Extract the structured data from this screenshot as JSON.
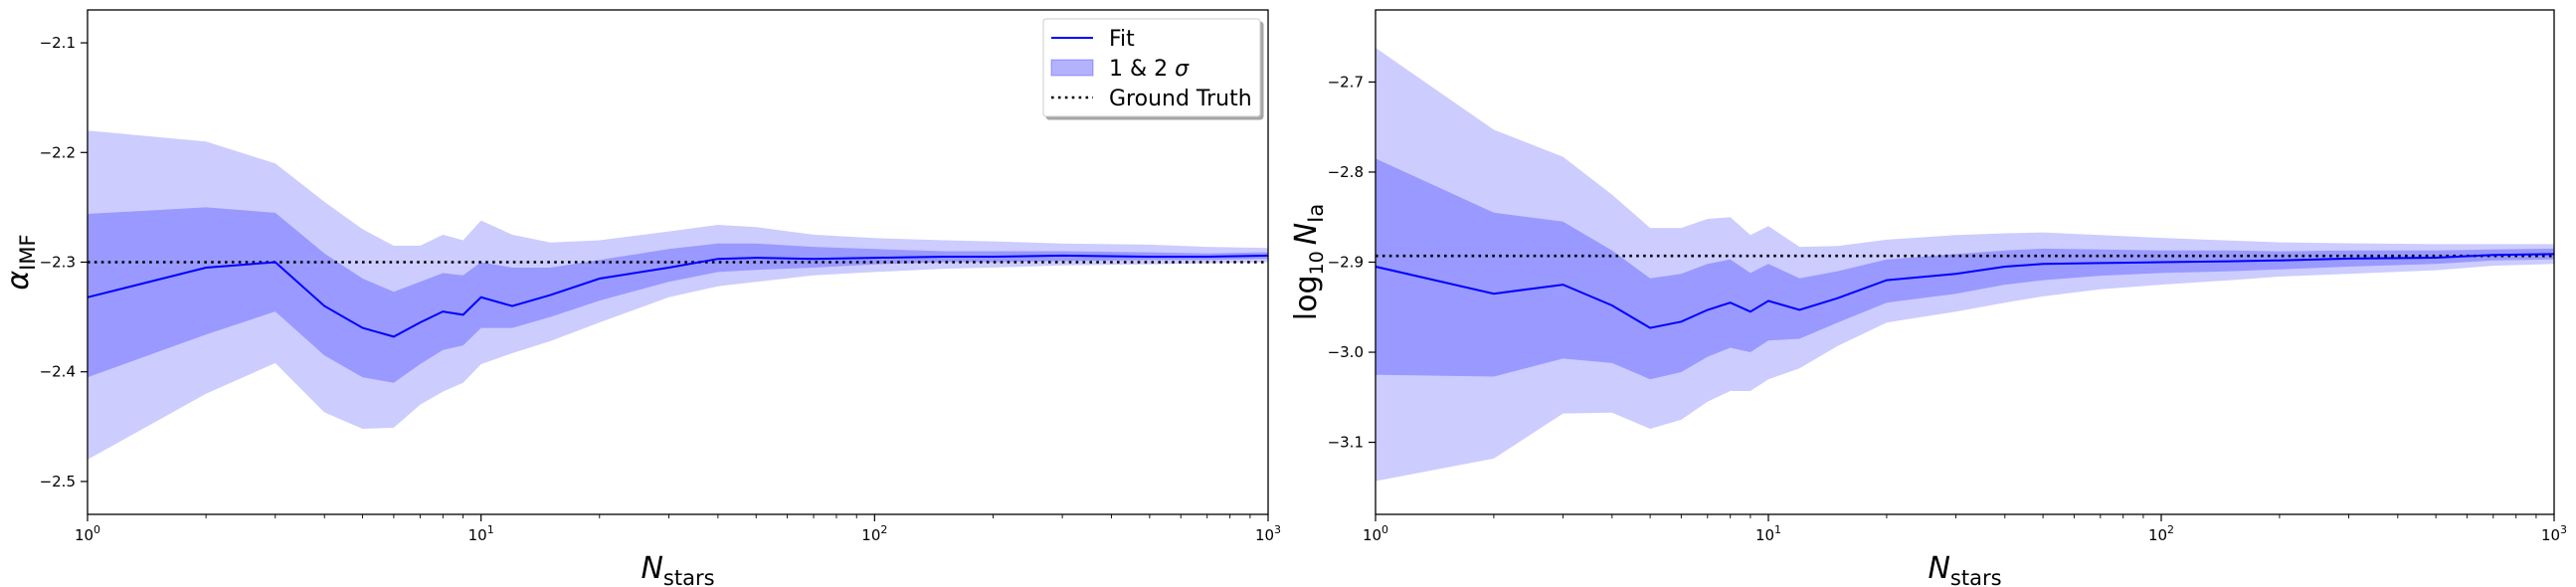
{
  "chart_data": [
    {
      "type": "line",
      "xlabel": "N_stars",
      "ylabel": "α_IMF",
      "xscale": "log",
      "xlim": [
        1,
        1000
      ],
      "ylim": [
        -2.53,
        -2.07
      ],
      "xticks": [
        1,
        10,
        100,
        1000
      ],
      "xtick_labels": [
        "10^0",
        "10^1",
        "10^2",
        "10^3"
      ],
      "yticks": [
        -2.5,
        -2.4,
        -2.3,
        -2.2,
        -2.1
      ],
      "ytick_labels": [
        "−2.5",
        "−2.4",
        "−2.3",
        "−2.2",
        "−2.1"
      ],
      "ground_truth": -2.3,
      "legend": {
        "placement": "top-right",
        "entries": [
          {
            "kind": "line",
            "label": "Fit"
          },
          {
            "kind": "band",
            "label": "1 & 2 σ"
          },
          {
            "kind": "dotted",
            "label": "Ground Truth"
          }
        ]
      },
      "x": [
        1,
        2,
        3,
        4,
        5,
        6,
        7,
        8,
        9,
        10,
        12,
        15,
        20,
        30,
        40,
        50,
        70,
        100,
        150,
        200,
        300,
        500,
        700,
        1000
      ],
      "series": [
        {
          "name": "Fit",
          "values": [
            -2.332,
            -2.305,
            -2.3,
            -2.34,
            -2.36,
            -2.368,
            -2.355,
            -2.345,
            -2.348,
            -2.332,
            -2.34,
            -2.33,
            -2.315,
            -2.305,
            -2.297,
            -2.296,
            -2.297,
            -2.296,
            -2.295,
            -2.295,
            -2.294,
            -2.295,
            -2.295,
            -2.294
          ],
          "sigma1_low": [
            -2.405,
            -2.366,
            -2.345,
            -2.385,
            -2.405,
            -2.41,
            -2.393,
            -2.38,
            -2.376,
            -2.36,
            -2.36,
            -2.35,
            -2.335,
            -2.318,
            -2.309,
            -2.307,
            -2.305,
            -2.302,
            -2.3,
            -2.3,
            -2.299,
            -2.298,
            -2.298,
            -2.297
          ],
          "sigma1_high": [
            -2.256,
            -2.25,
            -2.255,
            -2.292,
            -2.315,
            -2.327,
            -2.318,
            -2.31,
            -2.312,
            -2.3,
            -2.305,
            -2.305,
            -2.298,
            -2.288,
            -2.283,
            -2.283,
            -2.286,
            -2.288,
            -2.29,
            -2.29,
            -2.29,
            -2.291,
            -2.292,
            -2.291
          ],
          "sigma2_low": [
            -2.48,
            -2.42,
            -2.392,
            -2.437,
            -2.452,
            -2.451,
            -2.43,
            -2.418,
            -2.41,
            -2.393,
            -2.383,
            -2.372,
            -2.355,
            -2.332,
            -2.322,
            -2.318,
            -2.312,
            -2.309,
            -2.306,
            -2.305,
            -2.303,
            -2.302,
            -2.301,
            -2.3
          ],
          "sigma2_high": [
            -2.18,
            -2.19,
            -2.21,
            -2.245,
            -2.27,
            -2.285,
            -2.285,
            -2.275,
            -2.28,
            -2.262,
            -2.275,
            -2.282,
            -2.28,
            -2.272,
            -2.266,
            -2.268,
            -2.275,
            -2.278,
            -2.28,
            -2.281,
            -2.283,
            -2.284,
            -2.286,
            -2.287
          ]
        }
      ]
    },
    {
      "type": "line",
      "xlabel": "N_stars",
      "ylabel": "log10 N_Ia",
      "xscale": "log",
      "xlim": [
        1,
        1000
      ],
      "ylim": [
        -3.18,
        -2.62
      ],
      "xticks": [
        1,
        10,
        100,
        1000
      ],
      "xtick_labels": [
        "10^0",
        "10^1",
        "10^2",
        "10^3"
      ],
      "yticks": [
        -3.1,
        -3.0,
        -2.9,
        -2.8,
        -2.7
      ],
      "ytick_labels": [
        "−3.1",
        "−3.0",
        "−2.9",
        "−2.8",
        "−2.7"
      ],
      "ground_truth": -2.893,
      "x": [
        1,
        2,
        3,
        4,
        5,
        6,
        7,
        8,
        9,
        10,
        12,
        15,
        20,
        30,
        40,
        50,
        70,
        100,
        150,
        200,
        300,
        500,
        700,
        1000
      ],
      "series": [
        {
          "name": "Fit",
          "values": [
            -2.905,
            -2.935,
            -2.925,
            -2.948,
            -2.973,
            -2.966,
            -2.953,
            -2.945,
            -2.955,
            -2.943,
            -2.953,
            -2.94,
            -2.92,
            -2.913,
            -2.905,
            -2.902,
            -2.901,
            -2.9,
            -2.899,
            -2.898,
            -2.896,
            -2.895,
            -2.892,
            -2.891
          ],
          "sigma1_low": [
            -3.025,
            -3.027,
            -3.007,
            -3.012,
            -3.03,
            -3.022,
            -3.005,
            -2.995,
            -3.0,
            -2.987,
            -2.985,
            -2.967,
            -2.945,
            -2.935,
            -2.925,
            -2.92,
            -2.915,
            -2.912,
            -2.91,
            -2.908,
            -2.905,
            -2.902,
            -2.898,
            -2.897
          ],
          "sigma1_high": [
            -2.785,
            -2.845,
            -2.855,
            -2.887,
            -2.918,
            -2.913,
            -2.902,
            -2.897,
            -2.912,
            -2.902,
            -2.918,
            -2.91,
            -2.897,
            -2.891,
            -2.887,
            -2.885,
            -2.886,
            -2.887,
            -2.887,
            -2.888,
            -2.887,
            -2.887,
            -2.886,
            -2.885
          ],
          "sigma2_low": [
            -3.143,
            -3.118,
            -3.068,
            -3.067,
            -3.085,
            -3.075,
            -3.055,
            -3.043,
            -3.043,
            -3.03,
            -3.018,
            -2.993,
            -2.967,
            -2.955,
            -2.945,
            -2.938,
            -2.93,
            -2.925,
            -2.92,
            -2.916,
            -2.913,
            -2.909,
            -2.904,
            -2.902
          ],
          "sigma2_high": [
            -2.662,
            -2.753,
            -2.783,
            -2.825,
            -2.862,
            -2.862,
            -2.852,
            -2.85,
            -2.87,
            -2.86,
            -2.883,
            -2.882,
            -2.875,
            -2.87,
            -2.868,
            -2.867,
            -2.87,
            -2.873,
            -2.876,
            -2.878,
            -2.879,
            -2.88,
            -2.88,
            -2.88
          ]
        }
      ]
    }
  ]
}
